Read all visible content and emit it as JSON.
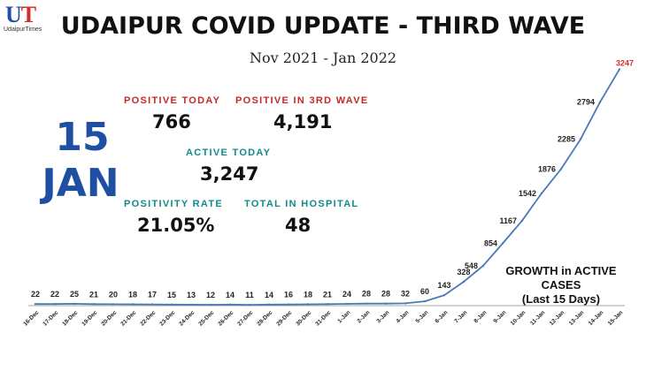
{
  "logo": {
    "mark_u": "U",
    "mark_t": "T",
    "sub": "UdaipurTimes"
  },
  "title": "UDAIPUR COVID UPDATE - THIRD WAVE",
  "subtitle": "Nov 2021 - Jan 2022",
  "date": {
    "day": "15",
    "month": "JAN"
  },
  "stats": {
    "positive_today": {
      "label": "POSITIVE TODAY",
      "value": "766"
    },
    "positive_3rd_wave": {
      "label": "POSITIVE IN 3RD WAVE",
      "value": "4,191"
    },
    "active_today": {
      "label": "ACTIVE TODAY",
      "value": "3,247"
    },
    "positivity_rate": {
      "label": "POSITIVITY RATE",
      "value": "21.05%"
    },
    "total_hospital": {
      "label": "TOTAL IN HOSPITAL",
      "value": "48"
    }
  },
  "colors": {
    "line": "#4a78b8",
    "highlight": "#d32f2f",
    "label_red": "#c62828",
    "label_teal": "#128a8a",
    "date_blue": "#1e4fa3"
  },
  "chart_data": {
    "type": "line",
    "annotation": [
      "GROWTH in ACTIVE CASES",
      "(Last 15 Days)"
    ],
    "categories": [
      "16-Dec",
      "17-Dec",
      "18-Dec",
      "19-Dec",
      "20-Dec",
      "21-Dec",
      "22-Dec",
      "23-Dec",
      "24-Dec",
      "25-Dec",
      "26-Dec",
      "27-Dec",
      "28-Dec",
      "29-Dec",
      "30-Dec",
      "31-Dec",
      "1-Jan",
      "2-Jan",
      "3-Jan",
      "4-Jan",
      "5-Jan",
      "6-Jan",
      "7-Jan",
      "8-Jan",
      "9-Jan",
      "10-Jan",
      "11-Jan",
      "12-Jan",
      "13-Jan",
      "14-Jan",
      "15-Jan"
    ],
    "values": [
      22,
      22,
      25,
      21,
      20,
      18,
      17,
      15,
      13,
      12,
      14,
      11,
      14,
      16,
      18,
      21,
      24,
      28,
      28,
      32,
      60,
      143,
      328,
      548,
      854,
      1167,
      1542,
      1876,
      2285,
      2794,
      3247
    ],
    "data_labels": [
      "22",
      "22",
      "25",
      "21",
      "20",
      "18",
      "17",
      "15",
      "13",
      "12",
      "14",
      "11",
      "14",
      "16",
      "18",
      "21",
      "24",
      "28",
      "28",
      "32",
      "60",
      "143",
      "328",
      "548",
      "854",
      "1167",
      "1542",
      "1876",
      "2285",
      "2794",
      "3247"
    ],
    "ylim": [
      0,
      3300
    ],
    "grid": false,
    "highlight_last": true
  }
}
